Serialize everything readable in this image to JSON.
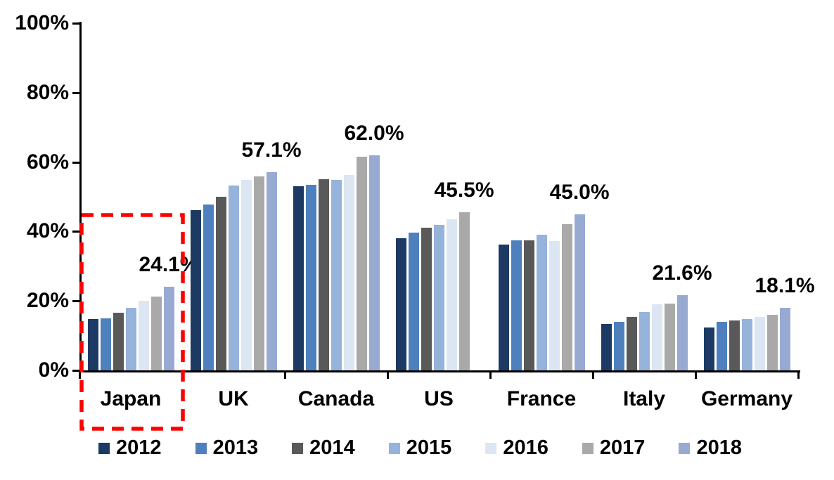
{
  "chart_data": {
    "type": "bar",
    "title": "",
    "categories": [
      "Japan",
      "UK",
      "Canada",
      "US",
      "France",
      "Italy",
      "Germany"
    ],
    "series": [
      {
        "name": "2012",
        "color": "#1c3a63",
        "values": [
          14.7,
          46.2,
          53.1,
          38.0,
          36.3,
          13.3,
          12.4
        ]
      },
      {
        "name": "2013",
        "color": "#4e80be",
        "values": [
          15.0,
          47.8,
          53.5,
          39.7,
          37.4,
          14.0,
          14.0
        ]
      },
      {
        "name": "2014",
        "color": "#595959",
        "values": [
          16.6,
          50.0,
          55.0,
          41.0,
          37.4,
          15.3,
          14.4
        ]
      },
      {
        "name": "2015",
        "color": "#95b3db",
        "values": [
          18.0,
          53.2,
          54.8,
          42.0,
          39.1,
          16.8,
          14.8
        ]
      },
      {
        "name": "2016",
        "color": "#dce6f2",
        "values": [
          20.0,
          54.8,
          56.2,
          43.5,
          37.2,
          19.0,
          15.4
        ]
      },
      {
        "name": "2017",
        "color": "#a9a9a9",
        "values": [
          21.2,
          55.8,
          61.5,
          45.5,
          42.1,
          19.2,
          16.0
        ]
      },
      {
        "name": "2018",
        "color": "#98a9d2",
        "values": [
          24.1,
          57.1,
          62.0,
          null,
          45.0,
          21.6,
          18.1
        ]
      }
    ],
    "value_labels": [
      "24.1%",
      "57.1%",
      "62.0%",
      "45.5%",
      "45.0%",
      "21.6%",
      "18.1%"
    ],
    "y_ticks": [
      "100%",
      "80%",
      "60%",
      "40%",
      "20%",
      "0%"
    ],
    "y_tick_values": [
      100,
      80,
      60,
      40,
      20,
      0
    ],
    "ylim": [
      0,
      100
    ],
    "grid": false,
    "legend_position": "bottom",
    "legend_labels": [
      "2012",
      "2013",
      "2014",
      "2015",
      "2016",
      "2017",
      "2018"
    ],
    "annotation": {
      "highlighted_category": "Japan",
      "highlight_style": "red dashed rectangle",
      "highlight_color": "#fe0000"
    }
  }
}
